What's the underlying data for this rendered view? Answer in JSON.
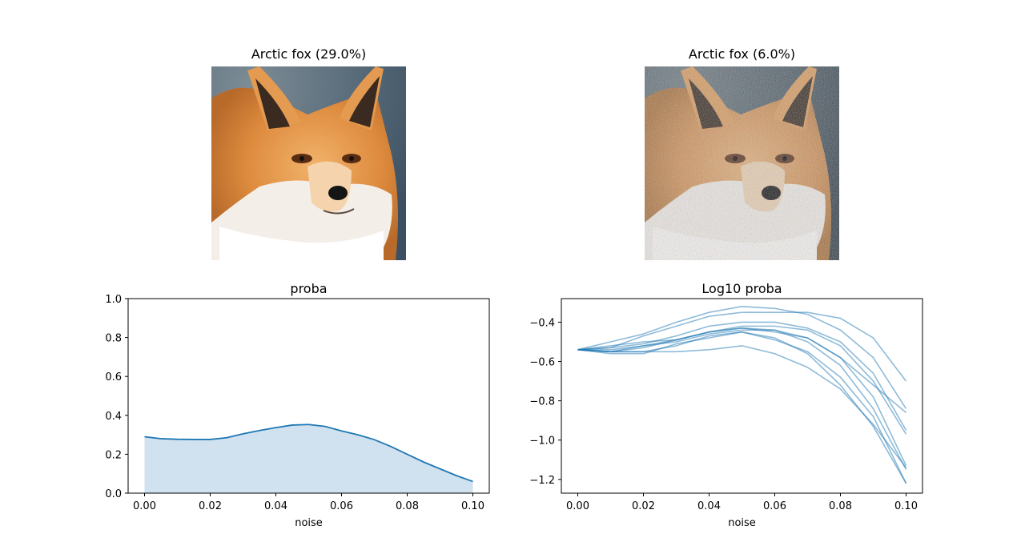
{
  "images": [
    {
      "title": "Arctic fox (29.0%)",
      "subject": "red fox face, clean"
    },
    {
      "title": "Arctic fox (6.0%)",
      "subject": "red fox face, with added noise"
    }
  ],
  "colors": {
    "line": "#1f77b4",
    "fill": "#d0e2f0"
  },
  "chart_data": [
    {
      "type": "area",
      "title": "proba",
      "xlabel": "noise",
      "ylabel": "",
      "xlim": [
        -0.005,
        0.105
      ],
      "ylim": [
        0.0,
        1.0
      ],
      "xticks": [
        "0.00",
        "0.02",
        "0.04",
        "0.06",
        "0.08",
        "0.10"
      ],
      "yticks": [
        "0.0",
        "0.2",
        "0.4",
        "0.6",
        "0.8",
        "1.0"
      ],
      "grid": false,
      "x": [
        0.0,
        0.005,
        0.01,
        0.015,
        0.02,
        0.025,
        0.03,
        0.035,
        0.04,
        0.045,
        0.05,
        0.055,
        0.06,
        0.065,
        0.07,
        0.075,
        0.08,
        0.085,
        0.09,
        0.095,
        0.1
      ],
      "values": [
        0.29,
        0.28,
        0.277,
        0.276,
        0.276,
        0.285,
        0.305,
        0.322,
        0.337,
        0.35,
        0.353,
        0.343,
        0.32,
        0.3,
        0.275,
        0.24,
        0.2,
        0.16,
        0.125,
        0.09,
        0.06
      ]
    },
    {
      "type": "line",
      "title": "Log10 proba",
      "xlabel": "noise",
      "ylabel": "",
      "xlim": [
        -0.005,
        0.105
      ],
      "ylim": [
        -1.27,
        -0.28
      ],
      "xticks": [
        "0.00",
        "0.02",
        "0.04",
        "0.06",
        "0.08",
        "0.10"
      ],
      "yticks": [
        "−1.2",
        "−1.0",
        "−0.8",
        "−0.6",
        "−0.4"
      ],
      "grid": false,
      "x": [
        0.0,
        0.01,
        0.02,
        0.03,
        0.04,
        0.05,
        0.06,
        0.07,
        0.08,
        0.09,
        0.1
      ],
      "series": [
        {
          "values": [
            -0.54,
            -0.5,
            -0.46,
            -0.4,
            -0.35,
            -0.32,
            -0.33,
            -0.36,
            -0.44,
            -0.58,
            -0.84
          ]
        },
        {
          "values": [
            -0.54,
            -0.53,
            -0.47,
            -0.42,
            -0.37,
            -0.35,
            -0.35,
            -0.35,
            -0.38,
            -0.48,
            -0.7
          ]
        },
        {
          "values": [
            -0.54,
            -0.53,
            -0.51,
            -0.47,
            -0.42,
            -0.4,
            -0.4,
            -0.43,
            -0.5,
            -0.66,
            -0.95
          ]
        },
        {
          "values": [
            -0.54,
            -0.52,
            -0.5,
            -0.49,
            -0.45,
            -0.42,
            -0.42,
            -0.44,
            -0.52,
            -0.7,
            -0.97
          ]
        },
        {
          "values": [
            -0.54,
            -0.55,
            -0.53,
            -0.49,
            -0.45,
            -0.43,
            -0.45,
            -0.48,
            -0.58,
            -0.78,
            -1.13
          ]
        },
        {
          "values": [
            -0.54,
            -0.55,
            -0.55,
            -0.52,
            -0.47,
            -0.45,
            -0.49,
            -0.55,
            -0.68,
            -0.88,
            -1.22
          ]
        },
        {
          "values": [
            -0.54,
            -0.56,
            -0.56,
            -0.51,
            -0.48,
            -0.45,
            -0.48,
            -0.56,
            -0.72,
            -0.93,
            -1.22
          ]
        },
        {
          "values": [
            -0.54,
            -0.55,
            -0.55,
            -0.55,
            -0.54,
            -0.52,
            -0.56,
            -0.63,
            -0.74,
            -0.92,
            -1.14
          ]
        },
        {
          "values": [
            -0.54,
            -0.54,
            -0.52,
            -0.5,
            -0.46,
            -0.44,
            -0.44,
            -0.48,
            -0.58,
            -0.72,
            -0.86
          ]
        },
        {
          "values": [
            -0.54,
            -0.55,
            -0.52,
            -0.49,
            -0.45,
            -0.43,
            -0.44,
            -0.5,
            -0.62,
            -0.84,
            -1.15
          ]
        }
      ]
    }
  ]
}
